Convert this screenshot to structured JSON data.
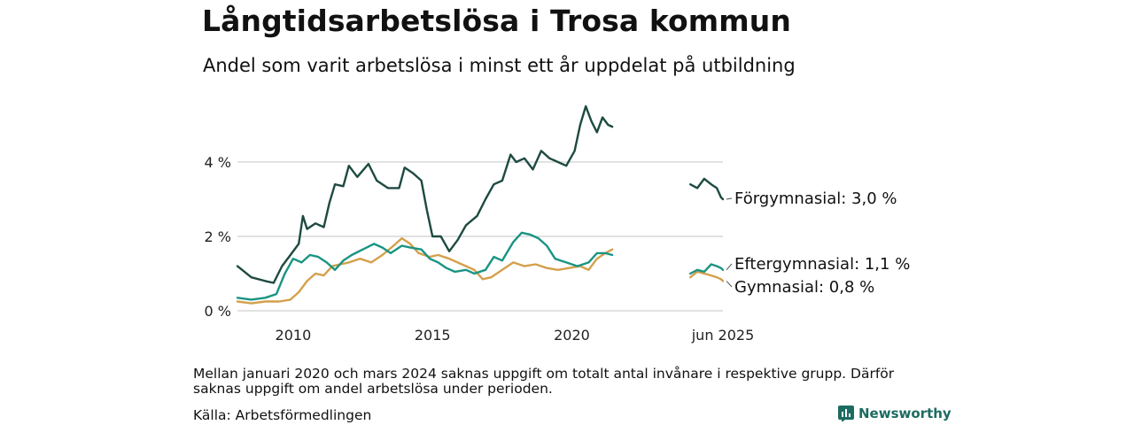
{
  "header": {
    "title": "Långtidsarbetslösa i Trosa kommun",
    "subtitle": "Andel som varit arbetslösa i minst ett år uppdelat på utbildning"
  },
  "footer": {
    "note": "Mellan januari 2020 och mars 2024 saknas uppgift om totalt antal invånare i respektive grupp. Därför saknas uppgift om andel arbetslösa under perioden.",
    "source": "Källa: Arbetsförmedlingen",
    "brand": "Newsworthy"
  },
  "colors": {
    "forgymnasial": "#1d4a41",
    "eftergymnasial": "#1a9483",
    "gymnasial": "#d4a04b",
    "grid": "#d9d9d9",
    "brand": "#1c6b60"
  },
  "chart_data": {
    "type": "line",
    "title": "Långtidsarbetslösa i Trosa kommun",
    "subtitle": "Andel som varit arbetslösa i minst ett år uppdelat på utbildning",
    "ylim": [
      0,
      5.6
    ],
    "yticks": [
      0,
      2,
      4
    ],
    "ytick_labels": [
      "0 %",
      "2 %",
      "4 %"
    ],
    "xticks": [
      2010,
      2015,
      2020,
      2025.42
    ],
    "xtick_labels": [
      "2010",
      "2015",
      "2020",
      "jun 2025"
    ],
    "grid": true,
    "series": [
      {
        "name": "Förgymnasial",
        "label": "Förgymnasial: 3,0 %",
        "color_key": "forgymnasial",
        "segments": [
          [
            [
              2008.0,
              1.2
            ],
            [
              2008.5,
              0.9
            ],
            [
              2009.0,
              0.8
            ],
            [
              2009.3,
              0.75
            ],
            [
              2009.6,
              1.2
            ],
            [
              2009.9,
              1.5
            ],
            [
              2010.2,
              1.8
            ],
            [
              2010.35,
              2.55
            ],
            [
              2010.5,
              2.2
            ],
            [
              2010.8,
              2.35
            ],
            [
              2011.1,
              2.25
            ],
            [
              2011.3,
              2.9
            ],
            [
              2011.5,
              3.4
            ],
            [
              2011.8,
              3.35
            ],
            [
              2012.0,
              3.9
            ],
            [
              2012.3,
              3.6
            ],
            [
              2012.7,
              3.95
            ],
            [
              2013.0,
              3.5
            ],
            [
              2013.4,
              3.3
            ],
            [
              2013.8,
              3.3
            ],
            [
              2014.0,
              3.85
            ],
            [
              2014.3,
              3.7
            ],
            [
              2014.6,
              3.5
            ],
            [
              2014.8,
              2.7
            ],
            [
              2015.0,
              2.0
            ],
            [
              2015.3,
              2.0
            ],
            [
              2015.6,
              1.6
            ],
            [
              2015.9,
              1.9
            ],
            [
              2016.2,
              2.3
            ],
            [
              2016.6,
              2.55
            ],
            [
              2016.9,
              3.0
            ],
            [
              2017.2,
              3.4
            ],
            [
              2017.5,
              3.5
            ],
            [
              2017.8,
              4.2
            ],
            [
              2018.0,
              4.0
            ],
            [
              2018.3,
              4.1
            ],
            [
              2018.6,
              3.8
            ],
            [
              2018.9,
              4.3
            ],
            [
              2019.2,
              4.1
            ],
            [
              2019.5,
              4.0
            ],
            [
              2019.8,
              3.9
            ],
            [
              2020.1,
              4.3
            ],
            [
              2020.3,
              5.0
            ],
            [
              2020.5,
              5.5
            ],
            [
              2020.7,
              5.1
            ],
            [
              2020.9,
              4.8
            ],
            [
              2021.1,
              5.2
            ],
            [
              2021.3,
              5.0
            ],
            [
              2021.45,
              4.95
            ]
          ],
          [
            [
              2024.25,
              3.4
            ],
            [
              2024.5,
              3.3
            ],
            [
              2024.75,
              3.55
            ],
            [
              2025.0,
              3.4
            ],
            [
              2025.2,
              3.3
            ],
            [
              2025.35,
              3.05
            ],
            [
              2025.42,
              3.0
            ]
          ]
        ]
      },
      {
        "name": "Eftergymnasial",
        "label": "Eftergymnasial: 1,1 %",
        "color_key": "eftergymnasial",
        "segments": [
          [
            [
              2008.0,
              0.35
            ],
            [
              2008.5,
              0.3
            ],
            [
              2009.0,
              0.35
            ],
            [
              2009.4,
              0.45
            ],
            [
              2009.7,
              1.0
            ],
            [
              2010.0,
              1.4
            ],
            [
              2010.3,
              1.3
            ],
            [
              2010.6,
              1.5
            ],
            [
              2010.9,
              1.45
            ],
            [
              2011.2,
              1.3
            ],
            [
              2011.5,
              1.1
            ],
            [
              2011.8,
              1.35
            ],
            [
              2012.1,
              1.5
            ],
            [
              2012.5,
              1.65
            ],
            [
              2012.9,
              1.8
            ],
            [
              2013.2,
              1.7
            ],
            [
              2013.5,
              1.55
            ],
            [
              2013.9,
              1.75
            ],
            [
              2014.2,
              1.7
            ],
            [
              2014.6,
              1.65
            ],
            [
              2014.9,
              1.4
            ],
            [
              2015.2,
              1.3
            ],
            [
              2015.5,
              1.15
            ],
            [
              2015.8,
              1.05
            ],
            [
              2016.2,
              1.1
            ],
            [
              2016.5,
              1.0
            ],
            [
              2016.9,
              1.1
            ],
            [
              2017.2,
              1.45
            ],
            [
              2017.5,
              1.35
            ],
            [
              2017.9,
              1.85
            ],
            [
              2018.2,
              2.1
            ],
            [
              2018.5,
              2.05
            ],
            [
              2018.8,
              1.95
            ],
            [
              2019.1,
              1.75
            ],
            [
              2019.4,
              1.4
            ],
            [
              2019.8,
              1.3
            ],
            [
              2020.2,
              1.2
            ],
            [
              2020.6,
              1.3
            ],
            [
              2020.9,
              1.55
            ],
            [
              2021.2,
              1.55
            ],
            [
              2021.45,
              1.5
            ]
          ],
          [
            [
              2024.25,
              1.0
            ],
            [
              2024.5,
              1.1
            ],
            [
              2024.75,
              1.05
            ],
            [
              2025.0,
              1.25
            ],
            [
              2025.2,
              1.2
            ],
            [
              2025.35,
              1.15
            ],
            [
              2025.42,
              1.1
            ]
          ]
        ]
      },
      {
        "name": "Gymnasial",
        "label": "Gymnasial: 0,8 %",
        "color_key": "gymnasial",
        "segments": [
          [
            [
              2008.0,
              0.25
            ],
            [
              2008.5,
              0.2
            ],
            [
              2009.0,
              0.25
            ],
            [
              2009.5,
              0.25
            ],
            [
              2009.9,
              0.3
            ],
            [
              2010.2,
              0.5
            ],
            [
              2010.5,
              0.8
            ],
            [
              2010.8,
              1.0
            ],
            [
              2011.1,
              0.95
            ],
            [
              2011.4,
              1.2
            ],
            [
              2011.7,
              1.25
            ],
            [
              2012.0,
              1.3
            ],
            [
              2012.4,
              1.4
            ],
            [
              2012.8,
              1.3
            ],
            [
              2013.2,
              1.5
            ],
            [
              2013.6,
              1.75
            ],
            [
              2013.9,
              1.95
            ],
            [
              2014.2,
              1.8
            ],
            [
              2014.5,
              1.55
            ],
            [
              2014.9,
              1.45
            ],
            [
              2015.2,
              1.5
            ],
            [
              2015.6,
              1.4
            ],
            [
              2015.9,
              1.3
            ],
            [
              2016.2,
              1.2
            ],
            [
              2016.5,
              1.1
            ],
            [
              2016.8,
              0.85
            ],
            [
              2017.1,
              0.9
            ],
            [
              2017.5,
              1.1
            ],
            [
              2017.9,
              1.3
            ],
            [
              2018.3,
              1.2
            ],
            [
              2018.7,
              1.25
            ],
            [
              2019.1,
              1.15
            ],
            [
              2019.5,
              1.1
            ],
            [
              2019.9,
              1.15
            ],
            [
              2020.3,
              1.2
            ],
            [
              2020.6,
              1.1
            ],
            [
              2020.9,
              1.4
            ],
            [
              2021.2,
              1.55
            ],
            [
              2021.45,
              1.65
            ]
          ],
          [
            [
              2024.25,
              0.9
            ],
            [
              2024.5,
              1.05
            ],
            [
              2024.75,
              1.0
            ],
            [
              2025.0,
              0.95
            ],
            [
              2025.2,
              0.9
            ],
            [
              2025.35,
              0.85
            ],
            [
              2025.42,
              0.8
            ]
          ]
        ]
      }
    ]
  }
}
